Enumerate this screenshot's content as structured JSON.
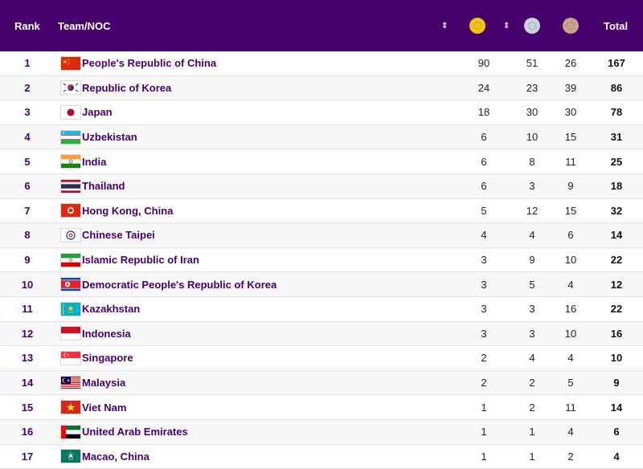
{
  "header": {
    "rank": "Rank",
    "team": "Team/NOC",
    "sort_glyph": "⇕",
    "gold_icon": "gold-medal-icon",
    "silver_icon": "silver-medal-icon",
    "bronze_icon": "bronze-medal-icon",
    "total": "Total"
  },
  "colors": {
    "header_bg": "#46006b",
    "team_text": "#46006b",
    "gold": "#f0c419",
    "silver": "#c6d3d8",
    "bronze": "#caa48a"
  },
  "rows": [
    {
      "rank": "1",
      "flag": "cn",
      "team": "People's Republic of China",
      "gold": "90",
      "silver": "51",
      "bronze": "26",
      "total": "167"
    },
    {
      "rank": "2",
      "flag": "kr",
      "team": "Republic of Korea",
      "gold": "24",
      "silver": "23",
      "bronze": "39",
      "total": "86"
    },
    {
      "rank": "3",
      "flag": "jp",
      "team": "Japan",
      "gold": "18",
      "silver": "30",
      "bronze": "30",
      "total": "78"
    },
    {
      "rank": "4",
      "flag": "uz",
      "team": "Uzbekistan",
      "gold": "6",
      "silver": "10",
      "bronze": "15",
      "total": "31"
    },
    {
      "rank": "5",
      "flag": "in",
      "team": "India",
      "gold": "6",
      "silver": "8",
      "bronze": "11",
      "total": "25"
    },
    {
      "rank": "6",
      "flag": "th",
      "team": "Thailand",
      "gold": "6",
      "silver": "3",
      "bronze": "9",
      "total": "18"
    },
    {
      "rank": "7",
      "flag": "hk",
      "team": "Hong Kong, China",
      "gold": "5",
      "silver": "12",
      "bronze": "15",
      "total": "32"
    },
    {
      "rank": "8",
      "flag": "tpe",
      "team": "Chinese Taipei",
      "gold": "4",
      "silver": "4",
      "bronze": "6",
      "total": "14"
    },
    {
      "rank": "9",
      "flag": "ir",
      "team": "Islamic Republic of Iran",
      "gold": "3",
      "silver": "9",
      "bronze": "10",
      "total": "22"
    },
    {
      "rank": "10",
      "flag": "kp",
      "team": "Democratic People's Republic of Korea",
      "gold": "3",
      "silver": "5",
      "bronze": "4",
      "total": "12"
    },
    {
      "rank": "11",
      "flag": "kz",
      "team": "Kazakhstan",
      "gold": "3",
      "silver": "3",
      "bronze": "16",
      "total": "22"
    },
    {
      "rank": "12",
      "flag": "id",
      "team": "Indonesia",
      "gold": "3",
      "silver": "3",
      "bronze": "10",
      "total": "16"
    },
    {
      "rank": "13",
      "flag": "sg",
      "team": "Singapore",
      "gold": "2",
      "silver": "4",
      "bronze": "4",
      "total": "10"
    },
    {
      "rank": "14",
      "flag": "my",
      "team": "Malaysia",
      "gold": "2",
      "silver": "2",
      "bronze": "5",
      "total": "9"
    },
    {
      "rank": "15",
      "flag": "vn",
      "team": "Viet Nam",
      "gold": "1",
      "silver": "2",
      "bronze": "11",
      "total": "14"
    },
    {
      "rank": "16",
      "flag": "ae",
      "team": "United Arab Emirates",
      "gold": "1",
      "silver": "1",
      "bronze": "4",
      "total": "6"
    },
    {
      "rank": "17",
      "flag": "mo",
      "team": "Macao, China",
      "gold": "1",
      "silver": "1",
      "bronze": "2",
      "total": "4"
    }
  ]
}
